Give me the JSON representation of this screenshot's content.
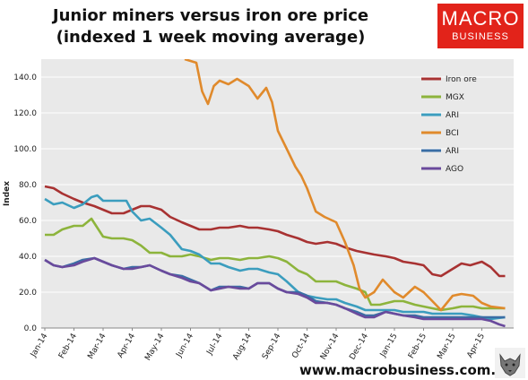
{
  "header": {
    "title_line1": "Junior miners versus iron ore price",
    "title_line2": "(indexed 1 week moving average)"
  },
  "logo": {
    "line1": "MACRO",
    "line2": "BUSINESS",
    "color": "#e2231a"
  },
  "footer": {
    "url": "www.macrobusiness.com.au"
  },
  "chart_data": {
    "type": "line",
    "ylabel": "Index",
    "ylim": [
      0,
      150
    ],
    "yticks": [
      "0.0",
      "20.0",
      "40.0",
      "60.0",
      "80.0",
      "100.0",
      "120.0",
      "140.0"
    ],
    "ytick_values": [
      0,
      20,
      40,
      60,
      80,
      100,
      120,
      140
    ],
    "x_range": [
      0,
      16
    ],
    "xtick_labels": [
      "Jan-14",
      "Feb-14",
      "Mar-14",
      "Apr-14",
      "May-14",
      "Jun-14",
      "Jul-14",
      "Aug-14",
      "Sep-14",
      "Oct-14",
      "Nov-14",
      "Dec-14",
      "Jan-15",
      "Feb-15",
      "Mar-15",
      "Apr-15"
    ],
    "grid": true,
    "legend_position": "right",
    "series": [
      {
        "name": "Iron ore",
        "color": "#a83232",
        "points": [
          [
            0,
            79
          ],
          [
            0.3,
            78
          ],
          [
            0.6,
            75
          ],
          [
            1,
            72
          ],
          [
            1.3,
            70
          ],
          [
            1.7,
            68
          ],
          [
            2,
            66
          ],
          [
            2.3,
            64
          ],
          [
            2.7,
            64
          ],
          [
            3,
            66
          ],
          [
            3.3,
            68
          ],
          [
            3.6,
            68
          ],
          [
            4,
            66
          ],
          [
            4.3,
            62
          ],
          [
            4.7,
            59
          ],
          [
            5,
            57
          ],
          [
            5.3,
            55
          ],
          [
            5.7,
            55
          ],
          [
            6,
            56
          ],
          [
            6.3,
            56
          ],
          [
            6.7,
            57
          ],
          [
            7,
            56
          ],
          [
            7.3,
            56
          ],
          [
            7.7,
            55
          ],
          [
            8,
            54
          ],
          [
            8.3,
            52
          ],
          [
            8.7,
            50
          ],
          [
            9,
            48
          ],
          [
            9.3,
            47
          ],
          [
            9.7,
            48
          ],
          [
            10,
            47
          ],
          [
            10.3,
            45
          ],
          [
            10.7,
            43
          ],
          [
            11,
            42
          ],
          [
            11.3,
            41
          ],
          [
            11.7,
            40
          ],
          [
            12,
            39
          ],
          [
            12.3,
            37
          ],
          [
            12.7,
            36
          ],
          [
            13,
            35
          ],
          [
            13.3,
            30
          ],
          [
            13.6,
            29
          ],
          [
            14,
            33
          ],
          [
            14.3,
            36
          ],
          [
            14.6,
            35
          ],
          [
            15,
            37
          ],
          [
            15.3,
            34
          ],
          [
            15.6,
            29
          ],
          [
            15.8,
            29
          ]
        ]
      },
      {
        "name": "MGX",
        "color": "#8db43c",
        "points": [
          [
            0,
            52
          ],
          [
            0.3,
            52
          ],
          [
            0.6,
            55
          ],
          [
            1,
            57
          ],
          [
            1.3,
            57
          ],
          [
            1.6,
            61
          ],
          [
            1.8,
            56
          ],
          [
            2,
            51
          ],
          [
            2.3,
            50
          ],
          [
            2.7,
            50
          ],
          [
            3,
            49
          ],
          [
            3.3,
            46
          ],
          [
            3.6,
            42
          ],
          [
            4,
            42
          ],
          [
            4.3,
            40
          ],
          [
            4.7,
            40
          ],
          [
            5,
            41
          ],
          [
            5.3,
            40
          ],
          [
            5.7,
            38
          ],
          [
            6,
            39
          ],
          [
            6.3,
            39
          ],
          [
            6.7,
            38
          ],
          [
            7,
            39
          ],
          [
            7.3,
            39
          ],
          [
            7.7,
            40
          ],
          [
            8,
            39
          ],
          [
            8.3,
            37
          ],
          [
            8.7,
            32
          ],
          [
            9,
            30
          ],
          [
            9.3,
            26
          ],
          [
            9.6,
            26
          ],
          [
            10,
            26
          ],
          [
            10.3,
            24
          ],
          [
            10.7,
            22
          ],
          [
            11,
            20
          ],
          [
            11.2,
            13
          ],
          [
            11.5,
            13
          ],
          [
            12,
            15
          ],
          [
            12.3,
            15
          ],
          [
            12.7,
            13
          ],
          [
            13,
            12
          ],
          [
            13.3,
            11
          ],
          [
            13.6,
            10
          ],
          [
            14,
            11
          ],
          [
            14.3,
            12
          ],
          [
            14.7,
            12
          ],
          [
            15,
            11
          ],
          [
            15.3,
            11
          ],
          [
            15.8,
            11
          ]
        ]
      },
      {
        "name": "ARI",
        "color": "#3b9dbe",
        "points": [
          [
            0,
            72
          ],
          [
            0.3,
            69
          ],
          [
            0.6,
            70
          ],
          [
            1,
            67
          ],
          [
            1.3,
            69
          ],
          [
            1.6,
            73
          ],
          [
            1.8,
            74
          ],
          [
            2,
            71
          ],
          [
            2.5,
            71
          ],
          [
            2.8,
            71
          ],
          [
            3,
            65
          ],
          [
            3.3,
            60
          ],
          [
            3.6,
            61
          ],
          [
            4,
            56
          ],
          [
            4.3,
            52
          ],
          [
            4.7,
            44
          ],
          [
            5,
            43
          ],
          [
            5.3,
            41
          ],
          [
            5.7,
            36
          ],
          [
            6,
            36
          ],
          [
            6.3,
            34
          ],
          [
            6.7,
            32
          ],
          [
            7,
            33
          ],
          [
            7.3,
            33
          ],
          [
            7.7,
            31
          ],
          [
            8,
            30
          ],
          [
            8.3,
            26
          ],
          [
            8.7,
            20
          ],
          [
            9,
            18
          ],
          [
            9.3,
            17
          ],
          [
            9.7,
            16
          ],
          [
            10,
            16
          ],
          [
            10.3,
            14
          ],
          [
            10.7,
            12
          ],
          [
            11,
            10
          ],
          [
            11.3,
            10
          ],
          [
            11.7,
            10
          ],
          [
            12,
            10
          ],
          [
            12.3,
            9
          ],
          [
            12.7,
            9
          ],
          [
            13,
            9
          ],
          [
            13.3,
            8
          ],
          [
            13.6,
            8
          ],
          [
            14,
            8
          ],
          [
            14.3,
            8
          ],
          [
            14.7,
            7
          ],
          [
            15,
            6
          ],
          [
            15.3,
            5
          ],
          [
            15.8,
            6
          ]
        ]
      },
      {
        "name": "BCI",
        "color": "#e08a2c",
        "points": [
          [
            4.8,
            150
          ],
          [
            5,
            149
          ],
          [
            5.2,
            148
          ],
          [
            5.4,
            132
          ],
          [
            5.6,
            125
          ],
          [
            5.8,
            135
          ],
          [
            6,
            138
          ],
          [
            6.3,
            136
          ],
          [
            6.6,
            139
          ],
          [
            7,
            135
          ],
          [
            7.3,
            128
          ],
          [
            7.6,
            134
          ],
          [
            7.8,
            126
          ],
          [
            8,
            110
          ],
          [
            8.3,
            100
          ],
          [
            8.6,
            90
          ],
          [
            8.8,
            85
          ],
          [
            9,
            78
          ],
          [
            9.3,
            65
          ],
          [
            9.6,
            62
          ],
          [
            10,
            59
          ],
          [
            10.3,
            48
          ],
          [
            10.6,
            35
          ],
          [
            10.8,
            22
          ],
          [
            11,
            17
          ],
          [
            11.3,
            20
          ],
          [
            11.6,
            27
          ],
          [
            12,
            20
          ],
          [
            12.3,
            17
          ],
          [
            12.7,
            23
          ],
          [
            13,
            20
          ],
          [
            13.3,
            15
          ],
          [
            13.6,
            10
          ],
          [
            14,
            18
          ],
          [
            14.3,
            19
          ],
          [
            14.7,
            18
          ],
          [
            15,
            14
          ],
          [
            15.3,
            12
          ],
          [
            15.8,
            11
          ]
        ]
      },
      {
        "name": "ARI",
        "color": "#3a6ea5",
        "points": [
          [
            0,
            38
          ],
          [
            0.3,
            35
          ],
          [
            0.6,
            34
          ],
          [
            1,
            36
          ],
          [
            1.3,
            38
          ],
          [
            1.7,
            39
          ],
          [
            2,
            37
          ],
          [
            2.3,
            35
          ],
          [
            2.7,
            33
          ],
          [
            3,
            34
          ],
          [
            3.3,
            34
          ],
          [
            3.6,
            35
          ],
          [
            4,
            32
          ],
          [
            4.3,
            30
          ],
          [
            4.7,
            29
          ],
          [
            5,
            27
          ],
          [
            5.3,
            25
          ],
          [
            5.7,
            21
          ],
          [
            6,
            23
          ],
          [
            6.3,
            23
          ],
          [
            6.7,
            23
          ],
          [
            7,
            22
          ],
          [
            7.3,
            25
          ],
          [
            7.7,
            25
          ],
          [
            8,
            22
          ],
          [
            8.3,
            20
          ],
          [
            8.7,
            20
          ],
          [
            9,
            18
          ],
          [
            9.3,
            15
          ],
          [
            9.7,
            14
          ],
          [
            10,
            13
          ],
          [
            10.3,
            11
          ],
          [
            10.7,
            9
          ],
          [
            11,
            7
          ],
          [
            11.3,
            7
          ],
          [
            11.7,
            9
          ],
          [
            12,
            8
          ],
          [
            12.3,
            7
          ],
          [
            12.7,
            7
          ],
          [
            13,
            6
          ],
          [
            13.3,
            6
          ],
          [
            13.6,
            6
          ],
          [
            14,
            6
          ],
          [
            14.3,
            6
          ],
          [
            14.7,
            6
          ],
          [
            15,
            6
          ],
          [
            15.3,
            6
          ],
          [
            15.8,
            6
          ]
        ]
      },
      {
        "name": "AGO",
        "color": "#6a4a9c",
        "points": [
          [
            0,
            38
          ],
          [
            0.3,
            35
          ],
          [
            0.6,
            34
          ],
          [
            1,
            35
          ],
          [
            1.3,
            37
          ],
          [
            1.7,
            39
          ],
          [
            2,
            37
          ],
          [
            2.3,
            35
          ],
          [
            2.7,
            33
          ],
          [
            3,
            33
          ],
          [
            3.3,
            34
          ],
          [
            3.6,
            35
          ],
          [
            4,
            32
          ],
          [
            4.3,
            30
          ],
          [
            4.7,
            28
          ],
          [
            5,
            26
          ],
          [
            5.3,
            25
          ],
          [
            5.7,
            21
          ],
          [
            6,
            22
          ],
          [
            6.3,
            23
          ],
          [
            6.7,
            22
          ],
          [
            7,
            22
          ],
          [
            7.3,
            25
          ],
          [
            7.7,
            25
          ],
          [
            8,
            22
          ],
          [
            8.3,
            20
          ],
          [
            8.7,
            19
          ],
          [
            9,
            17
          ],
          [
            9.3,
            14
          ],
          [
            9.7,
            14
          ],
          [
            10,
            13
          ],
          [
            10.3,
            11
          ],
          [
            10.7,
            8
          ],
          [
            11,
            6
          ],
          [
            11.3,
            6
          ],
          [
            11.7,
            9
          ],
          [
            12,
            8
          ],
          [
            12.3,
            7
          ],
          [
            12.7,
            6
          ],
          [
            13,
            5
          ],
          [
            13.3,
            5
          ],
          [
            13.6,
            5
          ],
          [
            14,
            5
          ],
          [
            14.3,
            5
          ],
          [
            14.7,
            5
          ],
          [
            15,
            5
          ],
          [
            15.3,
            4
          ],
          [
            15.6,
            2
          ],
          [
            15.8,
            1
          ]
        ]
      }
    ]
  }
}
